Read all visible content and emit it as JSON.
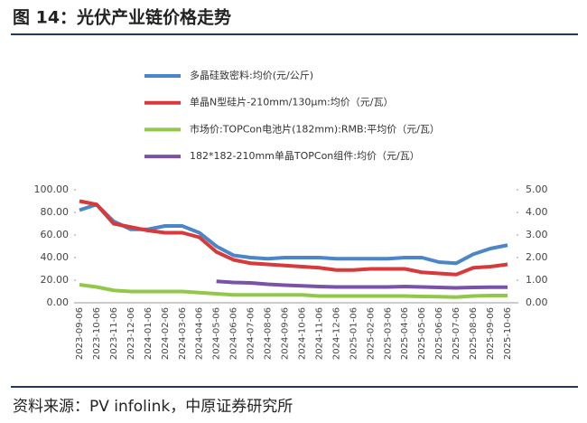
{
  "chart_data": {
    "type": "line",
    "title": "图 14：光伏产业链价格走势",
    "source": "资料来源：PV infolink，中原证券研究所",
    "categories": [
      "2023-09-06",
      "2023-10-06",
      "2023-11-06",
      "2023-12-06",
      "2024-01-06",
      "2024-02-06",
      "2024-03-06",
      "2024-04-06",
      "2024-05-06",
      "2024-06-06",
      "2024-07-06",
      "2024-08-06",
      "2024-09-06",
      "2024-10-06",
      "2024-11-06",
      "2024-12-06",
      "2025-01-06",
      "2025-02-06",
      "2025-03-06",
      "2025-04-06",
      "2025-05-06",
      "2025-06-06",
      "2025-07-06",
      "2025-08-06",
      "2025-09-06",
      "2025-10-06"
    ],
    "series": [
      {
        "name": "多晶硅致密料:均价(元/公斤)",
        "color": "#4a86c8",
        "axis": "y",
        "values": [
          82,
          87,
          72,
          65,
          65,
          68,
          68,
          62,
          50,
          42,
          40,
          39,
          40,
          40,
          40,
          39,
          39,
          39,
          39,
          40,
          40,
          36,
          35,
          43,
          48,
          51
        ]
      },
      {
        "name": "单晶N型硅片-210mm/130μm:均价（元/瓦）",
        "color": "#d63a3a",
        "axis": "y2",
        "values": [
          4.5,
          4.35,
          3.5,
          3.35,
          3.2,
          3.1,
          3.1,
          2.9,
          2.25,
          1.9,
          1.75,
          1.7,
          1.65,
          1.6,
          1.55,
          1.45,
          1.45,
          1.5,
          1.5,
          1.5,
          1.35,
          1.3,
          1.25,
          1.55,
          1.6,
          1.7
        ]
      },
      {
        "name": "市场价:TOPCon电池片(182mm):RMB:平均价（元/瓦）",
        "color": "#92c84a",
        "axis": "y2",
        "values": [
          0.8,
          0.7,
          0.55,
          0.5,
          0.5,
          0.5,
          0.5,
          0.45,
          0.4,
          0.35,
          0.35,
          0.35,
          0.35,
          0.35,
          0.3,
          0.3,
          0.3,
          0.3,
          0.3,
          0.3,
          0.28,
          0.27,
          0.25,
          0.3,
          0.32,
          0.32
        ]
      },
      {
        "name": "182*182-210mm单晶TOPCon组件:均价（元/瓦）",
        "color": "#7a52a8",
        "axis": "y2",
        "values": [
          null,
          null,
          null,
          null,
          null,
          null,
          null,
          null,
          0.95,
          0.9,
          0.88,
          0.82,
          0.78,
          0.75,
          0.72,
          0.7,
          0.7,
          0.7,
          0.7,
          0.72,
          0.7,
          0.68,
          0.66,
          0.68,
          0.69,
          0.69
        ]
      }
    ],
    "ylim": [
      0,
      100
    ],
    "yticks": [
      {
        "value": 0,
        "label": "0.00"
      },
      {
        "value": 20,
        "label": "20.00"
      },
      {
        "value": 40,
        "label": "40.00"
      },
      {
        "value": 60,
        "label": "60.00"
      },
      {
        "value": 80,
        "label": "80.00"
      },
      {
        "value": 100,
        "label": "100.00"
      }
    ],
    "y2lim": [
      0,
      5
    ],
    "y2ticks": [
      {
        "value": 0,
        "label": "0.00"
      },
      {
        "value": 1,
        "label": "1.00"
      },
      {
        "value": 2,
        "label": "2.00"
      },
      {
        "value": 3,
        "label": "3.00"
      },
      {
        "value": 4,
        "label": "4.00"
      },
      {
        "value": 5,
        "label": "5.00"
      }
    ]
  }
}
